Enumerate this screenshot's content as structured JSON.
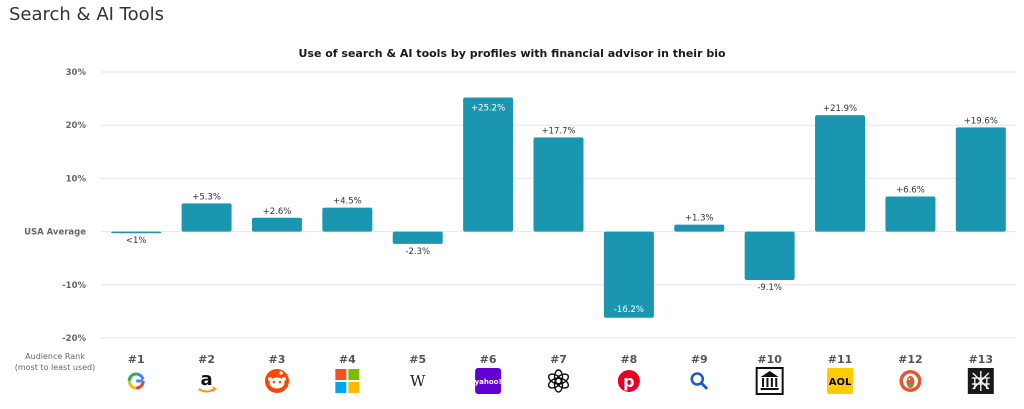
{
  "page": {
    "heading": "Search & AI Tools"
  },
  "legend": {
    "rank_caption_line1": "Audience Rank",
    "rank_caption_line2": "(most to least used)"
  },
  "colors": {
    "bar": "#1b96b1",
    "grid": "#e6e6e6",
    "axis_text": "#666666",
    "rank_text": "#555555"
  },
  "chart_data": {
    "type": "bar",
    "title": "Use of search & AI tools by profiles with financial advisor in their bio",
    "xlabel": "",
    "ylabel": "",
    "ylim": [
      -20,
      30
    ],
    "y_ticks": [
      {
        "value": 30,
        "label": "30%"
      },
      {
        "value": 20,
        "label": "20%"
      },
      {
        "value": 10,
        "label": "10%"
      },
      {
        "value": 0,
        "label": "USA Average"
      },
      {
        "value": -10,
        "label": "-10%"
      },
      {
        "value": -20,
        "label": "-20%"
      }
    ],
    "grid": true,
    "categories": [
      "#1",
      "#2",
      "#3",
      "#4",
      "#5",
      "#6",
      "#7",
      "#8",
      "#9",
      "#10",
      "#11",
      "#12",
      "#13"
    ],
    "icons": [
      "google-icon",
      "amazon-icon",
      "reddit-icon",
      "microsoft-icon",
      "wikipedia-icon",
      "yahoo-icon",
      "chatgpt-icon",
      "pinterest-icon",
      "search-icon",
      "bank-icon",
      "aol-icon",
      "duckduckgo-icon",
      "perplexity-icon"
    ],
    "values": [
      -0.3,
      5.3,
      2.6,
      4.5,
      -2.3,
      25.2,
      17.7,
      -16.2,
      1.3,
      -9.1,
      21.9,
      6.6,
      19.6
    ],
    "value_labels": [
      "<1%",
      "+5.3%",
      "+2.6%",
      "+4.5%",
      "-2.3%",
      "+25.2%",
      "+17.7%",
      "-16.2%",
      "+1.3%",
      "-9.1%",
      "+21.9%",
      "+6.6%",
      "+19.6%"
    ]
  }
}
